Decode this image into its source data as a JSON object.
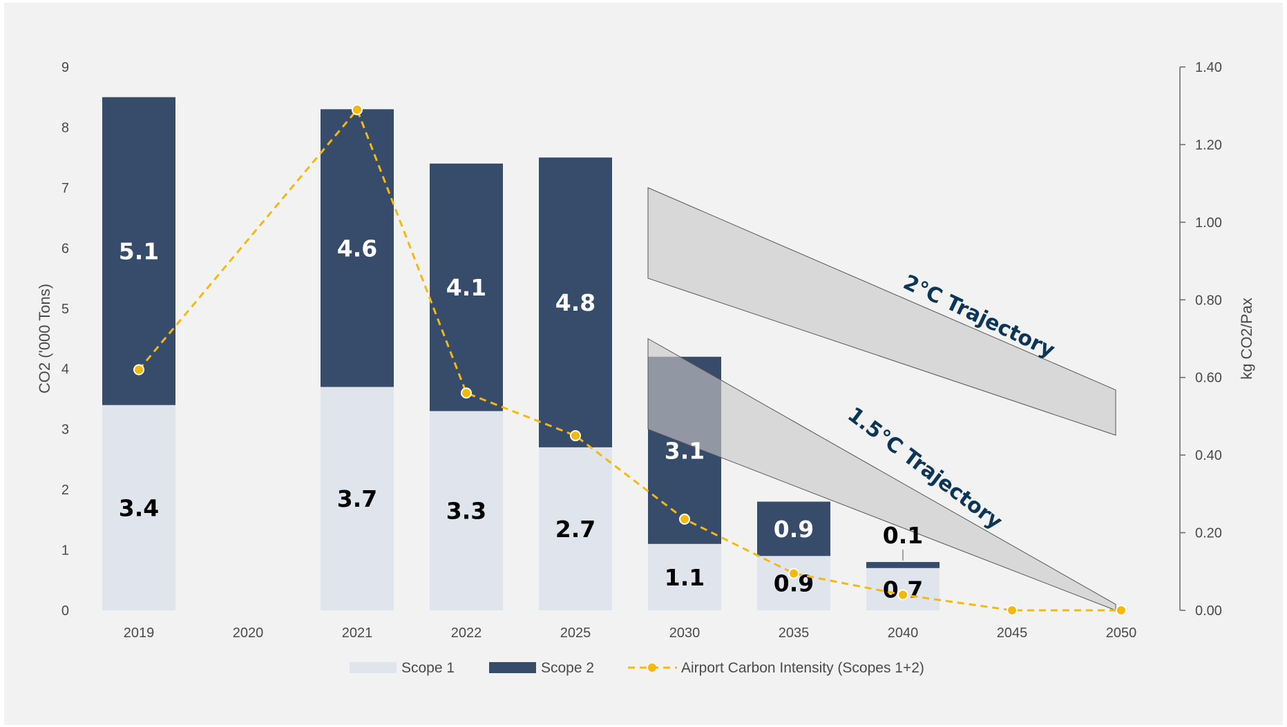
{
  "chart_data": {
    "type": "bar",
    "stacked": true,
    "categories": [
      "2019",
      "2020",
      "2021",
      "2022",
      "2025",
      "2030",
      "2035",
      "2040",
      "2045",
      "2050"
    ],
    "series": [
      {
        "name": "Scope 1",
        "type": "bar",
        "axis": "left",
        "color": "#dfe4ed",
        "values": [
          3.4,
          null,
          3.7,
          3.3,
          2.7,
          1.1,
          0.9,
          0.7,
          null,
          null
        ],
        "labels": [
          "3.4",
          "",
          "3.7",
          "3.3",
          "2.7",
          "1.1",
          "0.9",
          "0.7",
          "",
          ""
        ]
      },
      {
        "name": "Scope 2",
        "type": "bar",
        "axis": "left",
        "color": "#374b6b",
        "values": [
          5.1,
          null,
          4.6,
          4.1,
          4.8,
          3.1,
          0.9,
          0.1,
          null,
          null
        ],
        "labels": [
          "5.1",
          "",
          "4.6",
          "4.1",
          "4.8",
          "3.1",
          "0.9",
          "0.1",
          "",
          ""
        ]
      },
      {
        "name": "Airport Carbon Intensity (Scopes 1+2)",
        "type": "line",
        "style": "dashed",
        "axis": "right",
        "color": "#f5b80f",
        "values": [
          0.62,
          null,
          1.29,
          0.56,
          0.45,
          0.235,
          0.095,
          0.04,
          0.0,
          0.0
        ]
      }
    ],
    "y_left": {
      "label": "CO2 ('000 Tons)",
      "min": 0,
      "max": 9,
      "ticks": [
        "0",
        "1",
        "2",
        "3",
        "4",
        "5",
        "6",
        "7",
        "8",
        "9"
      ]
    },
    "y_right": {
      "label": "kg CO2/Pax",
      "min": 0,
      "max": 1.4,
      "ticks": [
        "0.00",
        "0.20",
        "0.40",
        "0.60",
        "0.80",
        "1.00",
        "1.20",
        "1.40"
      ]
    },
    "trajectories": [
      {
        "label": "2°C Trajectory",
        "from_category": "2030",
        "to_category": "2050",
        "upper": [
          7.0,
          3.65
        ],
        "lower": [
          5.5,
          2.9
        ]
      },
      {
        "label": "1.5°C Trajectory",
        "from_category": "2030",
        "to_category": "2050",
        "upper": [
          4.5,
          0.1
        ],
        "lower": [
          3.0,
          0.0
        ]
      }
    ],
    "legend_position": "bottom",
    "grid": false
  }
}
